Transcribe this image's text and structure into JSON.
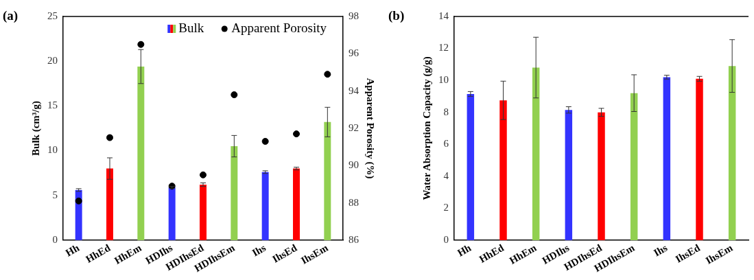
{
  "chart_data": [
    {
      "type": "bar",
      "title": "(a)",
      "ylabel": "Bulk (cm³/g)",
      "y2label": "Apparent Porosity (%)",
      "categories": [
        "Hh",
        "HhEd",
        "HhEm",
        "HDIhs",
        "HDIhsEd",
        "HDIhsEm",
        "Ihs",
        "IhsEd",
        "IhsEm"
      ],
      "series": [
        {
          "name": "Bulk",
          "color": "#595959",
          "colors": [
            "#3333ff",
            "#ff0000",
            "#92d050",
            "#3333ff",
            "#ff0000",
            "#92d050",
            "#3333ff",
            "#ff0000",
            "#92d050"
          ],
          "values": [
            5.6,
            8.0,
            19.4,
            5.9,
            6.2,
            10.5,
            7.6,
            8.0,
            13.2
          ],
          "errors": [
            0.15,
            1.2,
            1.9,
            0.1,
            0.2,
            1.2,
            0.15,
            0.15,
            1.65
          ]
        },
        {
          "name": "Apparent Porosity",
          "type": "scatter",
          "axis": "y2",
          "color": "#000000",
          "values": [
            88.1,
            91.5,
            96.5,
            88.9,
            89.5,
            93.8,
            91.3,
            91.7,
            94.9
          ]
        }
      ],
      "ylim": [
        0,
        25
      ],
      "yticks": [
        0,
        5,
        10,
        15,
        20,
        25
      ],
      "y2lim": [
        86,
        98
      ],
      "y2ticks": [
        86,
        88,
        90,
        92,
        94,
        96,
        98
      ],
      "marker": "circle",
      "legend": "top right",
      "grid": false
    },
    {
      "type": "bar",
      "title": "(b)",
      "ylabel": "Water Absorption Capacity (g/g)",
      "categories": [
        "Hh",
        "HhEd",
        "HhEm",
        "HDIhs",
        "HDIhsEd",
        "HDIhsEm",
        "Ihs",
        "IhsEd",
        "IhsEm"
      ],
      "colors": [
        "#3333ff",
        "#ff0000",
        "#92d050",
        "#3333ff",
        "#ff0000",
        "#92d050",
        "#3333ff",
        "#ff0000",
        "#92d050"
      ],
      "values": [
        9.15,
        8.75,
        10.8,
        8.15,
        8.0,
        9.2,
        10.2,
        10.1,
        10.9
      ],
      "errors": [
        0.15,
        1.2,
        1.9,
        0.2,
        0.25,
        1.15,
        0.12,
        0.15,
        1.65
      ],
      "ylim": [
        0,
        14
      ],
      "yticks": [
        0,
        2,
        4,
        6,
        8,
        10,
        12,
        14
      ],
      "grid": false
    }
  ]
}
